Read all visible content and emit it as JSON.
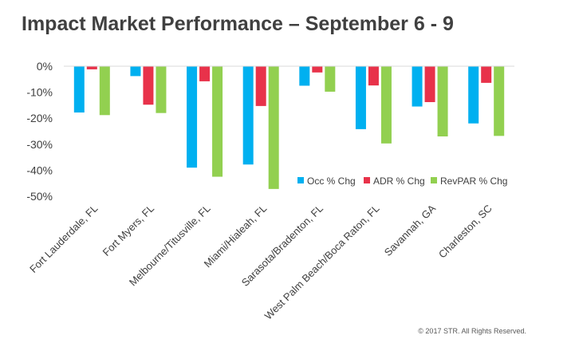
{
  "header": {
    "title": "Impact Market Performance – September 6 - 9"
  },
  "footer": {
    "copyright": "© 2017 STR. All Rights Reserved."
  },
  "chart_data": {
    "type": "bar",
    "title": "Impact Market Performance – September 6 - 9",
    "xlabel": "",
    "ylabel": "",
    "ylim": [
      -50,
      0
    ],
    "yticks": [
      0,
      -10,
      -20,
      -30,
      -40,
      -50
    ],
    "yticklabels": [
      "0%",
      "-10%",
      "-20%",
      "-30%",
      "-40%",
      "-50%"
    ],
    "grid": false,
    "legend": "bottom-right",
    "categories": [
      "Fort Lauderdale, FL",
      "Fort Myers, FL",
      "Melbourne/Titusville, FL",
      "Miami/Hialeah, FL",
      "Sarasota/Bradenton, FL",
      "West Palm Beach/Boca Raton, FL",
      "Savannah, GA",
      "Charleston, SC"
    ],
    "series": [
      {
        "name": "Occ % Chg",
        "color": "#00B0F0",
        "values": [
          -17.8,
          -3.8,
          -39.0,
          -37.8,
          -7.5,
          -24.2,
          -15.5,
          -22.0
        ]
      },
      {
        "name": "ADR % Chg",
        "color": "#E8324A",
        "values": [
          -1.2,
          -14.8,
          -5.8,
          -15.3,
          -2.4,
          -7.4,
          -13.8,
          -6.4
        ]
      },
      {
        "name": "RevPAR % Chg",
        "color": "#92D050",
        "values": [
          -18.8,
          -18.0,
          -42.5,
          -47.2,
          -9.8,
          -29.7,
          -27.0,
          -26.8
        ]
      }
    ]
  }
}
